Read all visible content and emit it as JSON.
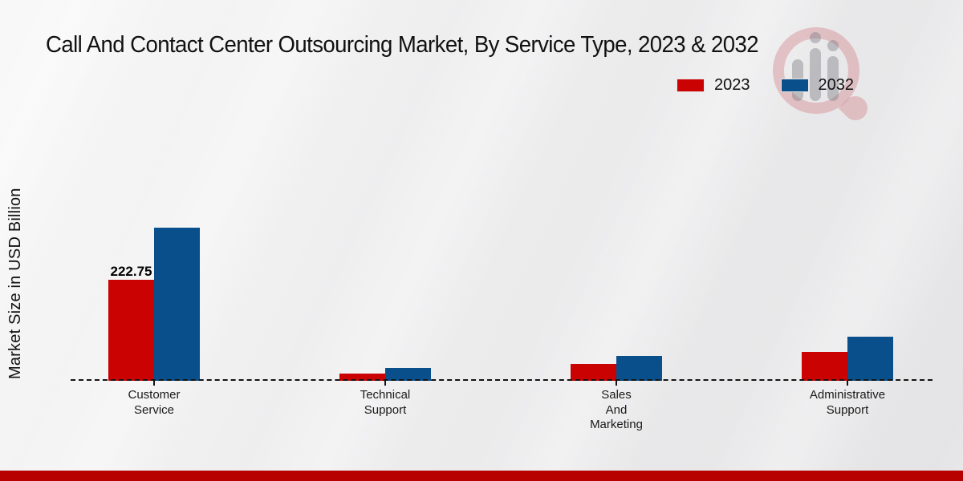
{
  "header": {
    "title": "Call And Contact Center Outsourcing Market, By Service Type, 2023 & 2032"
  },
  "colors": {
    "series_2023": "#ca0202",
    "series_2032": "#084f8c",
    "bottom_band": "#b70101",
    "axis": "#141414",
    "text": "#1a1a1a"
  },
  "chart_data": {
    "type": "bar",
    "title": "Call And Contact Center Outsourcing Market, By Service Type, 2023 & 2032",
    "ylabel": "Market Size in USD Billion",
    "xlabel": "",
    "categories": [
      "Customer\nService",
      "Technical\nSupport",
      "Sales\nAnd\nMarketing",
      "Administrative\nSupport"
    ],
    "series": [
      {
        "name": "2023",
        "color": "#ca0202",
        "values": [
          222.75,
          16,
          38,
          63
        ]
      },
      {
        "name": "2032",
        "color": "#084f8c",
        "values": [
          337.7,
          28,
          55,
          97
        ]
      }
    ],
    "annotations": [
      {
        "series_index": 0,
        "category_index": 0,
        "text": "222.75"
      }
    ],
    "ylim": [
      0,
      350
    ],
    "grid": false,
    "legend_position": "top-right",
    "baseline_style": "dashed"
  },
  "watermark": {
    "label": "logo-watermark"
  }
}
